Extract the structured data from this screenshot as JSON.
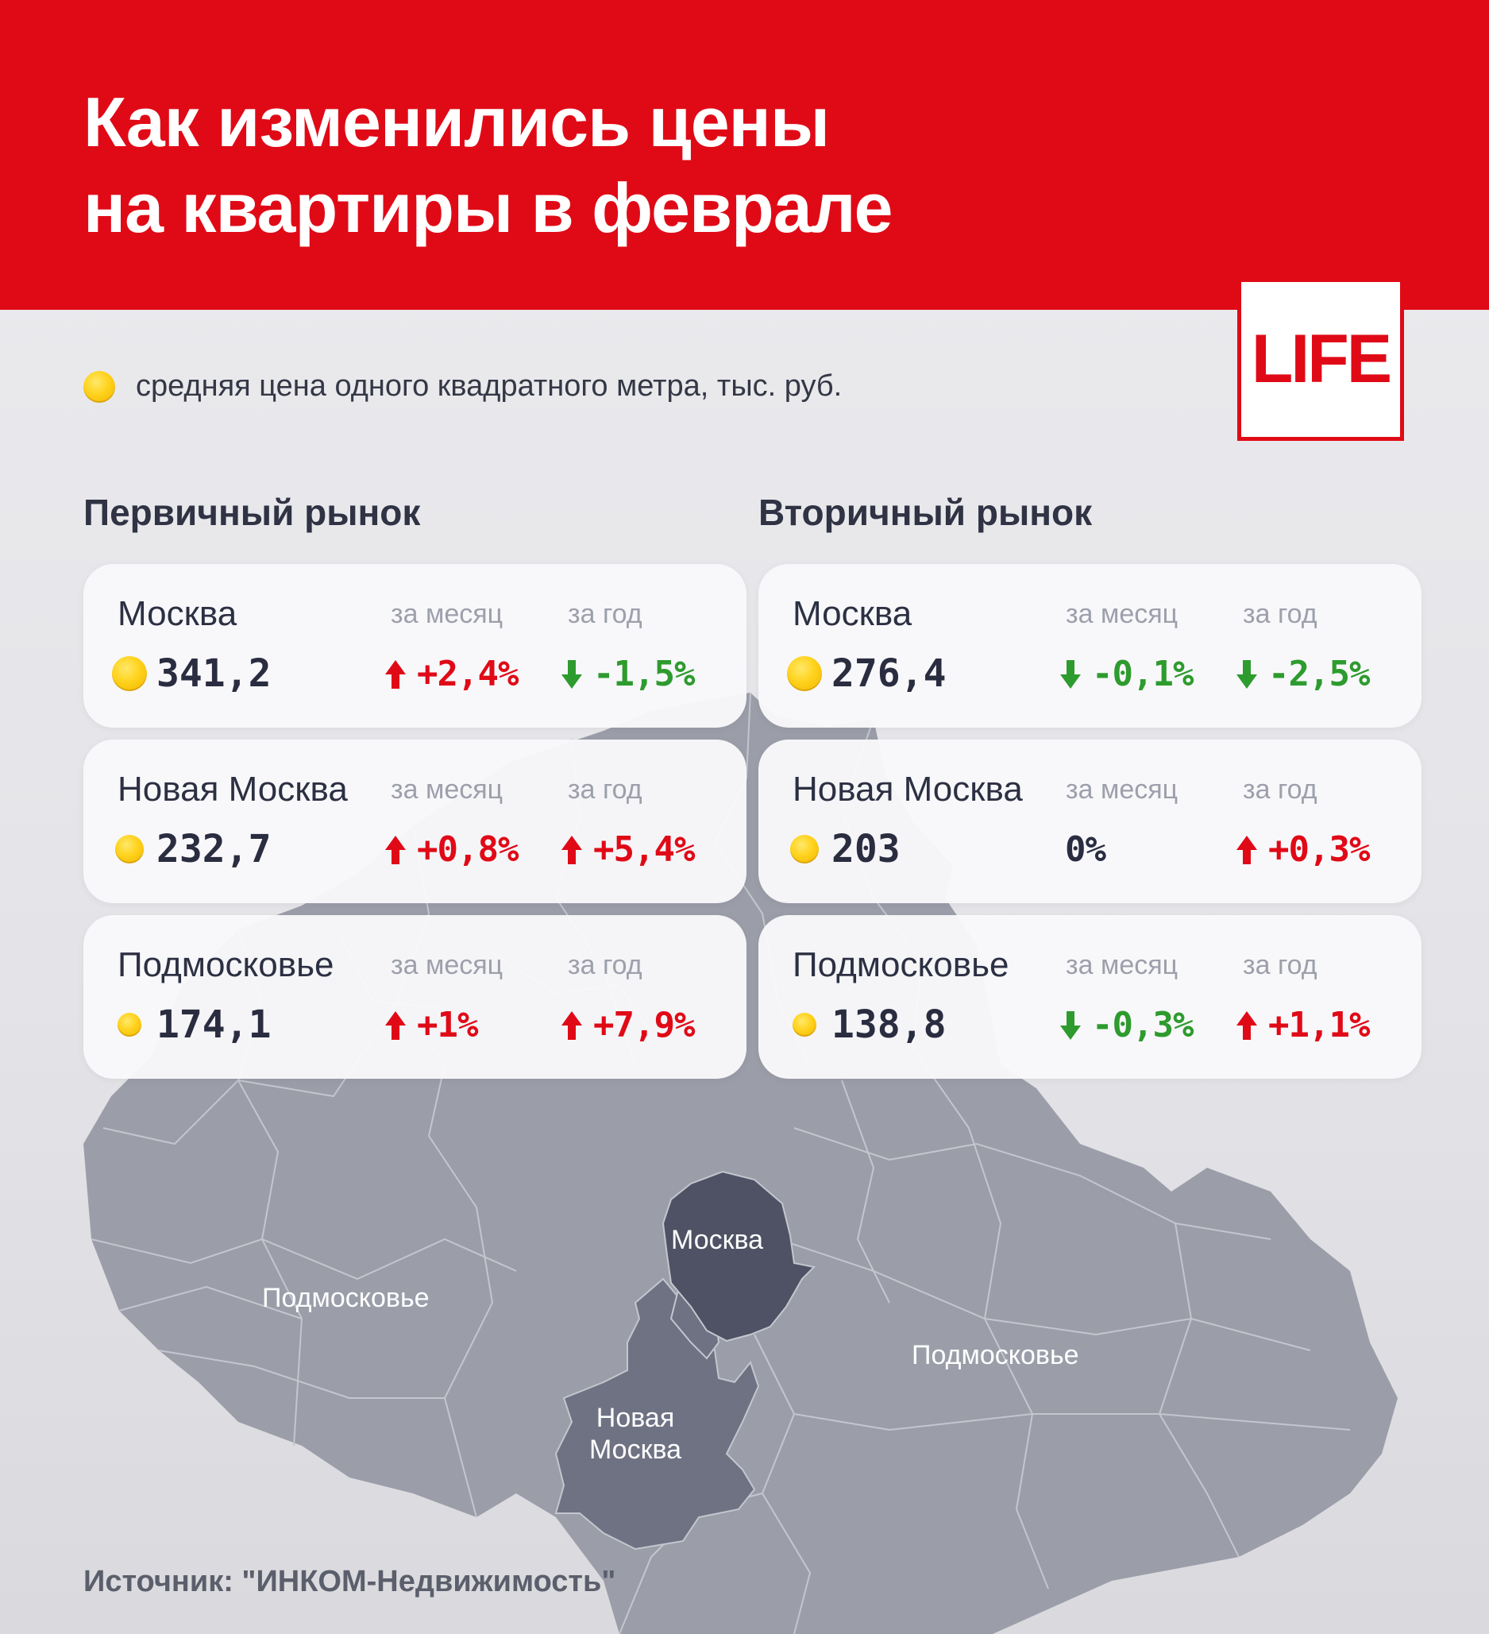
{
  "header": {
    "title_line1": "Как изменились цены",
    "title_line2": "на квартиры в феврале"
  },
  "logo": "LIFE",
  "legend": {
    "icon": "coin-icon",
    "text": "средняя цена одного квадратного метра, тыс. руб."
  },
  "labels": {
    "month": "за месяц",
    "year": "за год"
  },
  "primary": {
    "title": "Первичный рынок",
    "rows": [
      {
        "city": "Москва",
        "price": "341,2",
        "month": {
          "value": "+2,4%",
          "dir": "up"
        },
        "year": {
          "value": "-1,5%",
          "dir": "down"
        }
      },
      {
        "city": "Новая Москва",
        "price": "232,7",
        "month": {
          "value": "+0,8%",
          "dir": "up"
        },
        "year": {
          "value": "+5,4%",
          "dir": "up"
        }
      },
      {
        "city": "Подмосковье",
        "price": "174,1",
        "month": {
          "value": "+1%",
          "dir": "up"
        },
        "year": {
          "value": "+7,9%",
          "dir": "up"
        }
      }
    ]
  },
  "secondary": {
    "title": "Вторичный рынок",
    "rows": [
      {
        "city": "Москва",
        "price": "276,4",
        "month": {
          "value": "-0,1%",
          "dir": "down"
        },
        "year": {
          "value": "-2,5%",
          "dir": "down"
        }
      },
      {
        "city": "Новая Москва",
        "price": "203",
        "month": {
          "value": "0%",
          "dir": "flat"
        },
        "year": {
          "value": "+0,3%",
          "dir": "up"
        }
      },
      {
        "city": "Подмосковье",
        "price": "138,8",
        "month": {
          "value": "-0,3%",
          "dir": "down"
        },
        "year": {
          "value": "+1,1%",
          "dir": "up"
        }
      }
    ]
  },
  "map": {
    "labels": {
      "moscow": "Москва",
      "region_west": "Подмосковье",
      "region_east": "Подмосковье",
      "new_moscow_line1": "Новая",
      "new_moscow_line2": "Москва"
    },
    "colors": {
      "region": "#9b9ea9",
      "new_moscow": "#6f7283",
      "moscow": "#4f5264",
      "borders": "#c4c6ce"
    }
  },
  "colors": {
    "brand_red": "#e00a17",
    "up": "#e00a17",
    "down": "#2e9b2e",
    "coin": "#ffd21c"
  },
  "source": "Источник: \"ИНКОМ-Недвижимость\""
}
